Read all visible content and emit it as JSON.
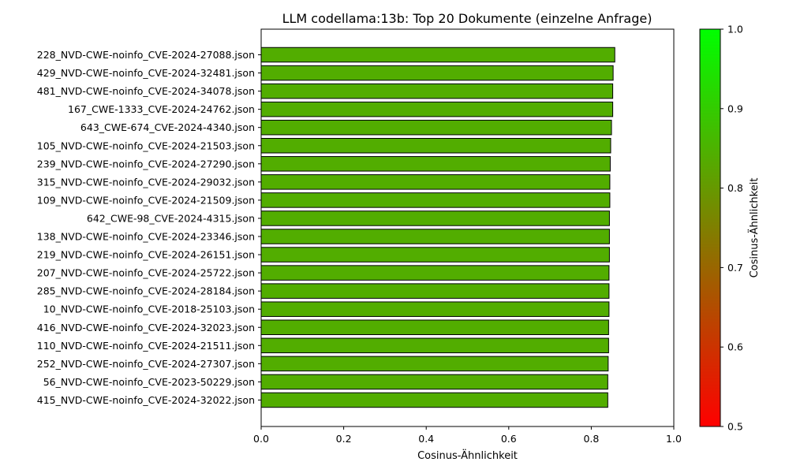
{
  "chart_data": {
    "type": "bar",
    "orientation": "horizontal",
    "title": "LLM codellama:13b: Top 20 Dokumente (einzelne Anfrage)",
    "xlabel": "Cosinus-Ähnlichkeit",
    "xlim": [
      0,
      1.0
    ],
    "x_ticks": [
      "0.0",
      "0.2",
      "0.4",
      "0.6",
      "0.8",
      "1.0"
    ],
    "categories": [
      "228_NVD-CWE-noinfo_CVE-2024-27088.json",
      "429_NVD-CWE-noinfo_CVE-2024-32481.json",
      "481_NVD-CWE-noinfo_CVE-2024-34078.json",
      "167_CWE-1333_CVE-2024-24762.json",
      "643_CWE-674_CVE-2024-4340.json",
      "105_NVD-CWE-noinfo_CVE-2024-21503.json",
      "239_NVD-CWE-noinfo_CVE-2024-27290.json",
      "315_NVD-CWE-noinfo_CVE-2024-29032.json",
      "109_NVD-CWE-noinfo_CVE-2024-21509.json",
      "642_CWE-98_CVE-2024-4315.json",
      "138_NVD-CWE-noinfo_CVE-2024-23346.json",
      "219_NVD-CWE-noinfo_CVE-2024-26151.json",
      "207_NVD-CWE-noinfo_CVE-2024-25722.json",
      "285_NVD-CWE-noinfo_CVE-2024-28184.json",
      "10_NVD-CWE-noinfo_CVE-2018-25103.json",
      "416_NVD-CWE-noinfo_CVE-2024-32023.json",
      "110_NVD-CWE-noinfo_CVE-2024-21511.json",
      "252_NVD-CWE-noinfo_CVE-2024-27307.json",
      "56_NVD-CWE-noinfo_CVE-2023-50229.json",
      "415_NVD-CWE-noinfo_CVE-2024-32022.json"
    ],
    "values": [
      0.857,
      0.853,
      0.852,
      0.852,
      0.849,
      0.847,
      0.846,
      0.845,
      0.845,
      0.844,
      0.844,
      0.844,
      0.843,
      0.843,
      0.843,
      0.842,
      0.842,
      0.841,
      0.84,
      0.84
    ],
    "bar_color": "#52ad00",
    "bar_edge_color": "#000000",
    "grid": false,
    "colorbar": {
      "label": "Cosinus-Ähnlichkeit",
      "range": [
        0.5,
        1.0
      ],
      "ticks": [
        "0.5",
        "0.6",
        "0.7",
        "0.8",
        "0.9",
        "1.0"
      ],
      "color_low": "#ff0000",
      "color_high": "#00ff00"
    }
  }
}
